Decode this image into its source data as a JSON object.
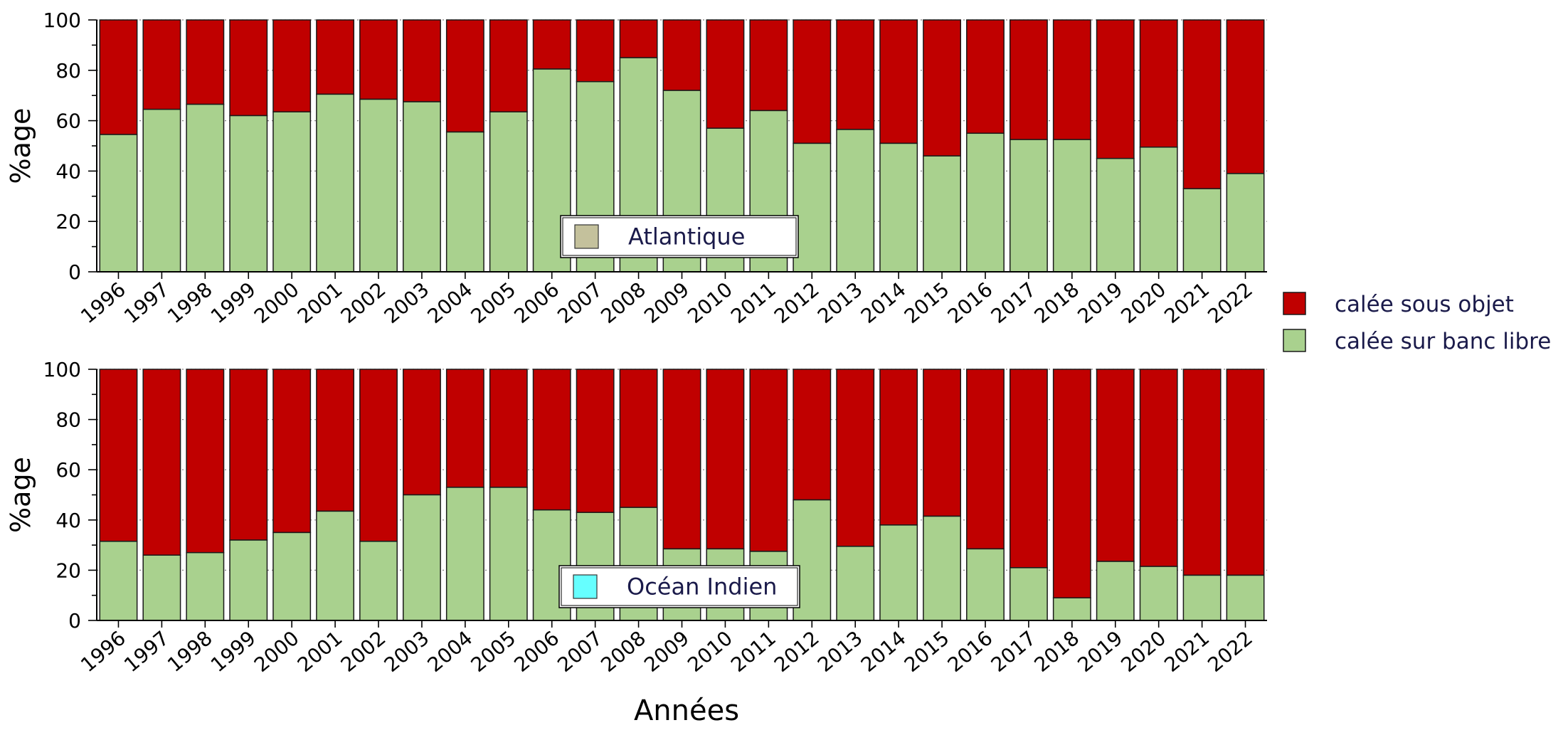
{
  "colors": {
    "under_object": "#c00000",
    "free_school": "#a9d18e",
    "atlantic_swatch": "#c4c19c",
    "indian_swatch": "#66ffff",
    "bar_edge": "#1a1a1a",
    "grid": "#7f7f7f"
  },
  "legend": {
    "placement": "right",
    "items": [
      {
        "label": "calée sous objet",
        "color": "#c00000"
      },
      {
        "label": "calée sur banc libre",
        "color": "#a9d18e"
      }
    ]
  },
  "shared_xlabel": "Années",
  "chart_data": [
    {
      "type": "bar",
      "stacked": true,
      "panel_label": "Atlantique",
      "panel_label_placement": "bottom-center",
      "ylabel": "%age",
      "ylim": [
        0,
        100
      ],
      "yticks": [
        0,
        20,
        40,
        60,
        80,
        100
      ],
      "grid": "horizontal dotted",
      "categories": [
        "1996",
        "1997",
        "1998",
        "1999",
        "2000",
        "2001",
        "2002",
        "2003",
        "2004",
        "2005",
        "2006",
        "2007",
        "2008",
        "2009",
        "2010",
        "2011",
        "2012",
        "2013",
        "2014",
        "2015",
        "2016",
        "2017",
        "2018",
        "2019",
        "2020",
        "2021",
        "2022"
      ],
      "series": [
        {
          "name": "calée sur banc libre",
          "values": [
            54.5,
            64.5,
            66.5,
            62,
            63.5,
            70.5,
            68.5,
            67.5,
            55.5,
            63.5,
            80.5,
            75.5,
            85,
            72,
            57,
            64,
            51,
            56.5,
            51,
            46,
            55,
            52.5,
            52.5,
            45,
            49.5,
            33,
            39
          ]
        },
        {
          "name": "calée sous objet",
          "values": [
            45.5,
            35.5,
            33.5,
            38,
            36.5,
            29.5,
            31.5,
            32.5,
            44.5,
            36.5,
            19.5,
            24.5,
            15,
            28,
            43,
            36,
            49,
            43.5,
            49,
            54,
            45,
            47.5,
            47.5,
            55,
            50.5,
            67,
            61
          ]
        }
      ]
    },
    {
      "type": "bar",
      "stacked": true,
      "panel_label": "Océan Indien",
      "panel_label_placement": "bottom-center",
      "ylabel": "%age",
      "ylim": [
        0,
        100
      ],
      "yticks": [
        0,
        20,
        40,
        60,
        80,
        100
      ],
      "grid": "horizontal dotted",
      "categories": [
        "1996",
        "1997",
        "1998",
        "1999",
        "2000",
        "2001",
        "2002",
        "2003",
        "2004",
        "2005",
        "2006",
        "2007",
        "2008",
        "2009",
        "2010",
        "2011",
        "2012",
        "2013",
        "2014",
        "2015",
        "2016",
        "2017",
        "2018",
        "2019",
        "2020",
        "2021",
        "2022"
      ],
      "series": [
        {
          "name": "calée sur banc libre",
          "values": [
            31.5,
            26,
            27,
            32,
            35,
            43.5,
            31.5,
            50,
            53,
            53,
            44,
            43,
            45,
            28.5,
            28.5,
            27.5,
            48,
            29.5,
            38,
            41.5,
            28.5,
            21,
            9,
            23.5,
            21.5,
            18,
            18
          ]
        },
        {
          "name": "calée sous objet",
          "values": [
            68.5,
            74,
            73,
            68,
            65,
            56.5,
            68.5,
            50,
            47,
            47,
            56,
            57,
            55,
            71.5,
            71.5,
            72.5,
            52,
            70.5,
            62,
            58.5,
            71.5,
            79,
            91,
            76.5,
            78.5,
            82,
            82
          ]
        }
      ]
    }
  ]
}
